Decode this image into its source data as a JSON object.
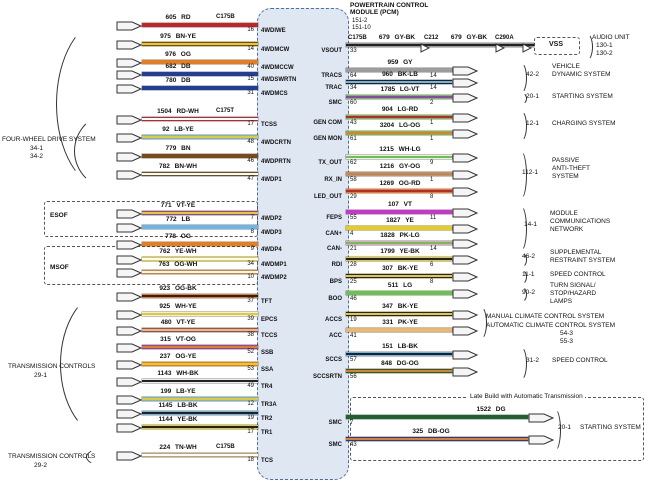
{
  "diagram_title": {
    "lines": [
      "POWERTRAIN CONTROL",
      "MODULE (PCM)"
    ],
    "refs": [
      "151-2",
      "151-10"
    ]
  },
  "pcm_fill": "#dfe7f3",
  "vss_label": "VSS",
  "late_box_label": "Late Build with Automatic Transmission",
  "left_groups": [
    {
      "label": "FOUR-WHEEL DRIVE SYSTEM",
      "refs": [
        "34-1",
        "34-2"
      ]
    },
    {
      "label": "TRANSMISSION CONTROLS",
      "refs": [
        "29-1"
      ]
    },
    {
      "label": "TRANSMISSION CONTROLS",
      "refs": [
        "29-2"
      ]
    }
  ],
  "option_boxes": [
    {
      "label": "ESOF"
    },
    {
      "label": "MSOF"
    }
  ],
  "left_wires": [
    {
      "name": "4WDIWE",
      "pin": "16",
      "label": "605 RD",
      "color": "#c42427",
      "stripe": "#c42427",
      "conn": "C175B"
    },
    {
      "name": "4WDMCW",
      "pin": "14",
      "label": "975 BN-YE",
      "color": "#7a4b19",
      "stripe": "#e8cc1c",
      "conn": ""
    },
    {
      "name": "4WDMCCW",
      "pin": "40",
      "label": "976 OG",
      "color": "#e87d1e",
      "stripe": "#e87d1e",
      "conn": ""
    },
    {
      "name": "4WDSWRTN",
      "pin": "15",
      "label": "682 DB",
      "color": "#1f3f99",
      "stripe": "#1f3f99",
      "conn": ""
    },
    {
      "name": "4WDMCS",
      "pin": "31",
      "label": "780 DB",
      "color": "#1f3f99",
      "stripe": "#1f3f99",
      "conn": ""
    },
    {
      "name": "TCSS",
      "pin": "17",
      "label": "1504 RD-WH",
      "color": "#c42427",
      "stripe": "#ffffff",
      "conn": "C175T"
    },
    {
      "name": "4WDCRTN",
      "pin": "48",
      "label": "92 LB-YE",
      "color": "#6cb5e8",
      "stripe": "#e8cc1c",
      "conn": ""
    },
    {
      "name": "4WDPRTN",
      "pin": "46",
      "label": "779 BN",
      "color": "#7a4b19",
      "stripe": "#7a4b19",
      "conn": ""
    },
    {
      "name": "4WDP1",
      "pin": "47",
      "label": "782 BN-WH",
      "color": "#7a4b19",
      "stripe": "#ffffff",
      "conn": ""
    },
    {
      "name": "4WDP2",
      "pin": "7",
      "label": "771 VT-YE",
      "color": "#9440b5",
      "stripe": "#e8cc1c",
      "conn": ""
    },
    {
      "name": "4WDP3",
      "pin": "8",
      "label": "772 LB",
      "color": "#6cb5e8",
      "stripe": "#6cb5e8",
      "conn": ""
    },
    {
      "name": "4WDP4",
      "pin": "9",
      "label": "778 OG",
      "color": "#e87d1e",
      "stripe": "#e87d1e",
      "conn": ""
    },
    {
      "name": "4WDMP1",
      "pin": "34",
      "label": "762 YE-WH",
      "color": "#e8cc1c",
      "stripe": "#ffffff",
      "conn": ""
    },
    {
      "name": "4WDMP2",
      "pin": "10",
      "label": "763 OG-WH",
      "color": "#e87d1e",
      "stripe": "#ffffff",
      "conn": ""
    },
    {
      "name": "TFT",
      "pin": "37",
      "label": "923 OG-BK",
      "color": "#e87d1e",
      "stripe": "#222222",
      "conn": ""
    },
    {
      "name": "EPCS",
      "pin": "39",
      "label": "925 WH-YE",
      "color": "#ededed",
      "stripe": "#e8cc1c",
      "conn": ""
    },
    {
      "name": "TCCS",
      "pin": "38",
      "label": "480 VT-YE",
      "color": "#9440b5",
      "stripe": "#e8cc1c",
      "conn": ""
    },
    {
      "name": "SSB",
      "pin": "52",
      "label": "315 VT-OG",
      "color": "#9440b5",
      "stripe": "#e87d1e",
      "conn": ""
    },
    {
      "name": "SSA",
      "pin": "53",
      "label": "237 OG-YE",
      "color": "#e87d1e",
      "stripe": "#e8cc1c",
      "conn": ""
    },
    {
      "name": "TR4",
      "pin": "49",
      "label": "1143 WH-BK",
      "color": "#ededed",
      "stripe": "#222222",
      "conn": ""
    },
    {
      "name": "TR3A",
      "pin": "12",
      "label": "199 LB-YE",
      "color": "#6cb5e8",
      "stripe": "#e8cc1c",
      "conn": ""
    },
    {
      "name": "TR2",
      "pin": "19",
      "label": "1145 LB-BK",
      "color": "#6cb5e8",
      "stripe": "#222222",
      "conn": ""
    },
    {
      "name": "TR1",
      "pin": "17",
      "label": "1144 YE-BK",
      "color": "#e8cc1c",
      "stripe": "#222222",
      "conn": ""
    },
    {
      "name": "TCS",
      "pin": "18",
      "label": "224 TN-WH",
      "color": "#c7a26b",
      "stripe": "#ffffff",
      "conn": "C175B"
    }
  ],
  "right_wires": [
    {
      "name": "VSOUT",
      "pin": "33",
      "label": "679 GY-BK",
      "label2": "679 GY-BK",
      "connectors": [
        "C175B",
        "C212",
        "C290A"
      ],
      "target": "VSS",
      "color": "#9c9c9c",
      "stripe": "#222222",
      "far_pin": ""
    },
    {
      "name": "TRACS",
      "pin": "64",
      "label": "959 GY",
      "color": "#9c9c9c",
      "stripe": "#9c9c9c",
      "far_pin": "14"
    },
    {
      "name": "TRAC",
      "pin": "34",
      "label": "960 BK-LB",
      "color": "#222222",
      "stripe": "#6cb5e8",
      "far_pin": "14"
    },
    {
      "name": "SMC",
      "pin": "60",
      "label": "1785 LG-VT",
      "color": "#6cc24a",
      "stripe": "#9440b5",
      "far_pin": "2"
    },
    {
      "name": "GEN COM",
      "pin": "43",
      "label": "904 LG-RD",
      "color": "#6cc24a",
      "stripe": "#c42427",
      "far_pin": "1"
    },
    {
      "name": "GEN MON",
      "pin": "61",
      "label": "3204 LG-OG",
      "color": "#6cc24a",
      "stripe": "#e87d1e",
      "far_pin": "1"
    },
    {
      "name": "TX_OUT",
      "pin": "62",
      "label": "1215 WH-LG",
      "color": "#ededed",
      "stripe": "#6cc24a",
      "far_pin": "9"
    },
    {
      "name": "RX_IN",
      "pin": "58",
      "label": "1216 GY-OG",
      "color": "#9c9c9c",
      "stripe": "#e87d1e",
      "far_pin": "1"
    },
    {
      "name": "LED_OUT",
      "pin": "29",
      "label": "1269 OG-RD",
      "color": "#e87d1e",
      "stripe": "#c42427",
      "far_pin": "8"
    },
    {
      "name": "FEPS",
      "pin": "55",
      "label": "107 VT",
      "color": "#cc33cc",
      "stripe": "#cc33cc",
      "far_pin": "11"
    },
    {
      "name": "CAN+",
      "pin": "4",
      "label": "1827 YE",
      "color": "#e8cc1c",
      "stripe": "#e8cc1c",
      "far_pin": ""
    },
    {
      "name": "CAN-",
      "pin": "21",
      "label": "1828 PK-LG",
      "color": "#ef9fc5",
      "stripe": "#6cc24a",
      "far_pin": "14"
    },
    {
      "name": "RDI",
      "pin": "28",
      "label": "1799 YE-BK",
      "color": "#e8cc1c",
      "stripe": "#222222",
      "far_pin": "6"
    },
    {
      "name": "BPS",
      "pin": "25",
      "label": "307 BK-YE",
      "color": "#222222",
      "stripe": "#e8cc1c",
      "far_pin": "8"
    },
    {
      "name": "BOO",
      "pin": "46",
      "label": "511 LG",
      "color": "#6cc24a",
      "stripe": "#6cc24a",
      "far_pin": ""
    },
    {
      "name": "ACCS",
      "pin": "19",
      "label": "347 BK-YE",
      "color": "#222222",
      "stripe": "#e8cc1c",
      "far_pin": ""
    },
    {
      "name": "ACC",
      "pin": "41",
      "label": "331 PK-YE",
      "color": "#ef9fc5",
      "stripe": "#e8cc1c",
      "far_pin": ""
    },
    {
      "name": "SCCS",
      "pin": "57",
      "label": "151 LB-BK",
      "color": "#6cb5e8",
      "stripe": "#222222",
      "far_pin": ""
    },
    {
      "name": "SCCSRTN",
      "pin": "56",
      "label": "848 DG-OG",
      "color": "#20622c",
      "stripe": "#e87d1e",
      "far_pin": ""
    },
    {
      "name": "SMC",
      "pin": "7",
      "label": "1522 DG",
      "color": "#20622c",
      "stripe": "#20622c",
      "far_pin": ""
    },
    {
      "name": "SMC",
      "pin": "43",
      "label": "325 DB-OG",
      "color": "#1f3f99",
      "stripe": "#e87d1e",
      "far_pin": ""
    }
  ],
  "right_groups": [
    {
      "ref": "42-2",
      "lines": [
        "VEHICLE",
        "DYNAMIC SYSTEM"
      ]
    },
    {
      "ref": "20-1",
      "lines": [
        "STARTING SYSTEM"
      ]
    },
    {
      "ref": "12-1",
      "lines": [
        "CHARGING SYSTEM"
      ]
    },
    {
      "ref": "112-1",
      "lines": [
        "PASSIVE",
        "ANTI-THEFT",
        "SYSTEM"
      ]
    },
    {
      "ref": "14-1",
      "lines": [
        "MODULE",
        "COMMUNICATIONS",
        "NETWORK"
      ]
    },
    {
      "ref": "46-2",
      "lines": [
        "SUPPLEMENTAL",
        "RESTRAINT SYSTEM"
      ]
    },
    {
      "ref": "11-1",
      "lines": [
        "SPEED CONTROL"
      ]
    },
    {
      "ref": "90-2",
      "lines": [
        "TURN SIGNAL/",
        "STOP/HAZARD",
        "LAMPS"
      ]
    },
    {
      "ref": "",
      "lines": [
        "MANUAL CLIMATE CONTROL SYSTEM",
        "AUTOMATIC CLIMATE CONTROL SYSTEM",
        "54-3",
        "55-3"
      ]
    },
    {
      "ref": "31-2",
      "lines": [
        "SPEED CONTROL"
      ]
    },
    {
      "ref": "20-1",
      "lines": [
        "STARTING SYSTEM"
      ]
    },
    {
      "ref": "",
      "lines": [
        "AUDIO UNIT",
        "130-1",
        "130-2"
      ]
    }
  ]
}
